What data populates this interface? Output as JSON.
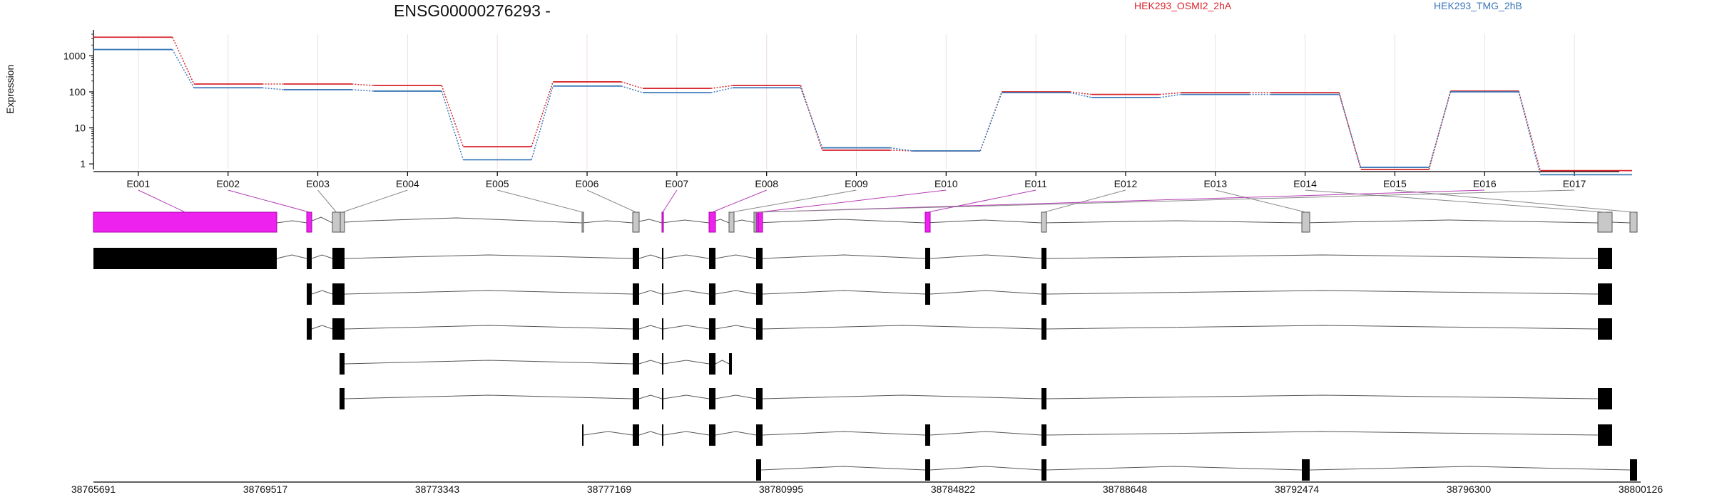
{
  "gene_title": "ENSG00000276293 -",
  "chart_data": {
    "type": "line",
    "ylabel": "Expression",
    "yscale": "log",
    "yticks": [
      "1000",
      "100",
      "10",
      "1"
    ],
    "ylim": [
      0.7,
      4000
    ],
    "categories": [
      "E001",
      "E002",
      "E003",
      "E004",
      "E005",
      "E006",
      "E007",
      "E008",
      "E009",
      "E010",
      "E011",
      "E012",
      "E013",
      "E014",
      "E015",
      "E016",
      "E017"
    ],
    "series": [
      {
        "name": "HEK293_OSMI2_2hA",
        "color": "#d7262c",
        "values": [
          3300,
          165,
          165,
          150,
          3.0,
          190,
          125,
          150,
          2.4,
          2.3,
          100,
          85,
          95,
          95,
          0.7,
          105,
          0.65
        ]
      },
      {
        "name": "HEK293_TMG_2hB",
        "color": "#3a78b8",
        "values": [
          1500,
          130,
          115,
          105,
          1.3,
          145,
          95,
          130,
          2.8,
          2.3,
          95,
          70,
          85,
          85,
          0.8,
          100,
          0.5
        ]
      }
    ],
    "exon_highlight": [
      true,
      true,
      false,
      false,
      false,
      false,
      true,
      true,
      false,
      true,
      true,
      false,
      false,
      false,
      false,
      true,
      false
    ],
    "genomic_ticks": [
      "38765691",
      "38769517",
      "38773343",
      "38777169",
      "38780995",
      "38784822",
      "38788648",
      "38792474",
      "38796300",
      "38800126"
    ],
    "genomic_range": [
      38765691,
      38800126
    ]
  },
  "colors": {
    "highlight": "#ee22ee",
    "nonhighlight": "#c8c8c8",
    "highlight_line": "#b43cb4",
    "grid": "#f0dede"
  }
}
